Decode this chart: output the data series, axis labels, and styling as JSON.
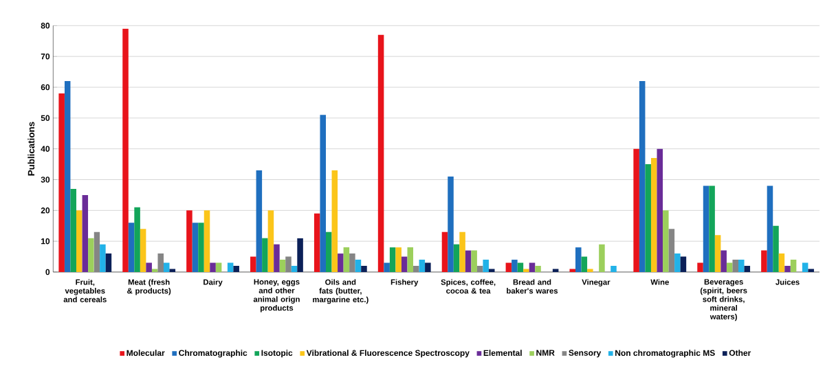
{
  "chart_data": {
    "type": "bar",
    "ylabel": "Publications",
    "categories": [
      "Fruit, vegetables and cereals",
      "Meat (fresh & products)",
      "Dairy",
      "Honey, eggs and other animal orign products",
      "Oils and fats (butter, margarine etc.)",
      "Fishery",
      "Spices, coffee, cocoa & tea",
      "Bread and baker's wares",
      "Vinegar",
      "Wine",
      "Beverages (spirit, beers soft drinks, mineral waters)",
      "Juices"
    ],
    "series": [
      {
        "name": "Molecular",
        "color": "#e8141b",
        "values": [
          58,
          79,
          20,
          5,
          19,
          77,
          13,
          3,
          1,
          40,
          3,
          7
        ]
      },
      {
        "name": "Chromatographic",
        "color": "#1f6fbf",
        "values": [
          62,
          16,
          16,
          33,
          51,
          3,
          31,
          4,
          8,
          62,
          28,
          28
        ]
      },
      {
        "name": "Isotopic",
        "color": "#13a55a",
        "values": [
          27,
          21,
          16,
          11,
          13,
          8,
          9,
          3,
          5,
          35,
          28,
          15
        ]
      },
      {
        "name": "Vibrational & Fluorescence Spectroscopy",
        "color": "#fbc51a",
        "values": [
          20,
          14,
          20,
          20,
          33,
          8,
          13,
          1,
          1,
          37,
          12,
          6
        ]
      },
      {
        "name": "Elemental",
        "color": "#6a2c98",
        "values": [
          25,
          3,
          3,
          9,
          6,
          5,
          7,
          3,
          0,
          40,
          7,
          2
        ]
      },
      {
        "name": "NMR",
        "color": "#9ccf5c",
        "values": [
          11,
          1,
          3,
          4,
          8,
          8,
          7,
          2,
          9,
          20,
          3,
          4
        ]
      },
      {
        "name": "Sensory",
        "color": "#858585",
        "values": [
          13,
          6,
          0,
          5,
          6,
          2,
          2,
          0,
          0,
          14,
          4,
          0
        ]
      },
      {
        "name": "Non chromatographic MS",
        "color": "#22b2e8",
        "values": [
          9,
          3,
          3,
          2,
          4,
          4,
          4,
          0,
          2,
          6,
          4,
          3
        ]
      },
      {
        "name": "Other",
        "color": "#0b2058",
        "values": [
          6,
          1,
          2,
          11,
          2,
          3,
          1,
          1,
          0,
          5,
          2,
          1
        ]
      }
    ],
    "ylim": [
      0,
      80
    ],
    "yticks": [
      0,
      10,
      20,
      30,
      40,
      50,
      60,
      70,
      80
    ],
    "grid": "y",
    "legend": "bottom"
  }
}
